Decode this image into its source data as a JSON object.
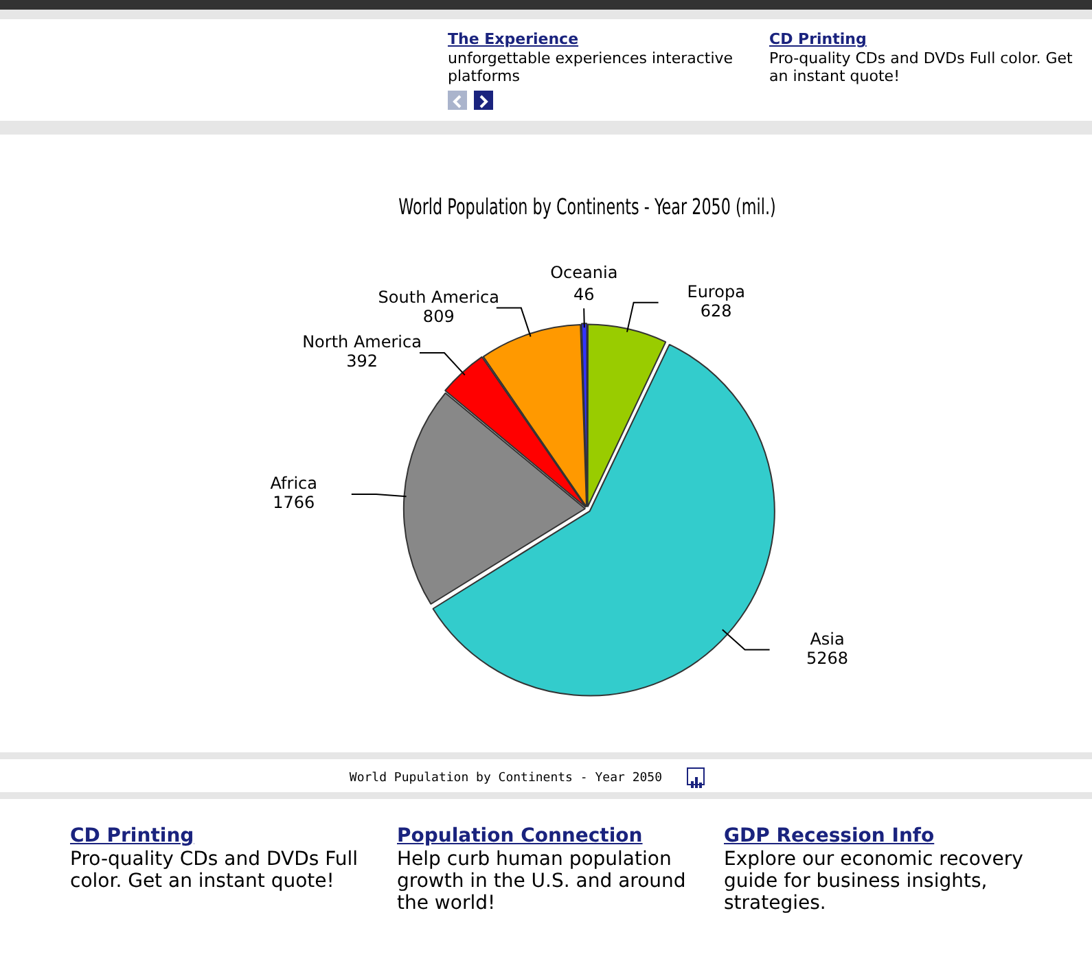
{
  "chart_data": {
    "type": "pie",
    "title": "World Population by Continents - Year 2050 (mil.)",
    "categories": [
      "Europa",
      "Asia",
      "Africa",
      "North America",
      "South America",
      "Oceania"
    ],
    "values": [
      628,
      5268,
      1766,
      392,
      809,
      46
    ],
    "colors": [
      "#99cc00",
      "#33cccc",
      "#888888",
      "#ff0000",
      "#ff9900",
      "#3333ff"
    ],
    "data_labels": true,
    "annotations": [
      "The Experience",
      "unforgettable experiences interactive platforms",
      "CD Printing",
      "Pro-quality CDs and DVDs Full color. Get an instant quote!",
      "World Pupulation by Continents - Year 2050",
      "CD Printing",
      "Pro-quality CDs and DVDs Full color. Get an instant quote!",
      "Population Connection",
      "Help curb human population growth in the U.S. and around the world!",
      "GDP Recession Info",
      "Explore our economic recovery guide for business insights, strategies."
    ]
  }
}
